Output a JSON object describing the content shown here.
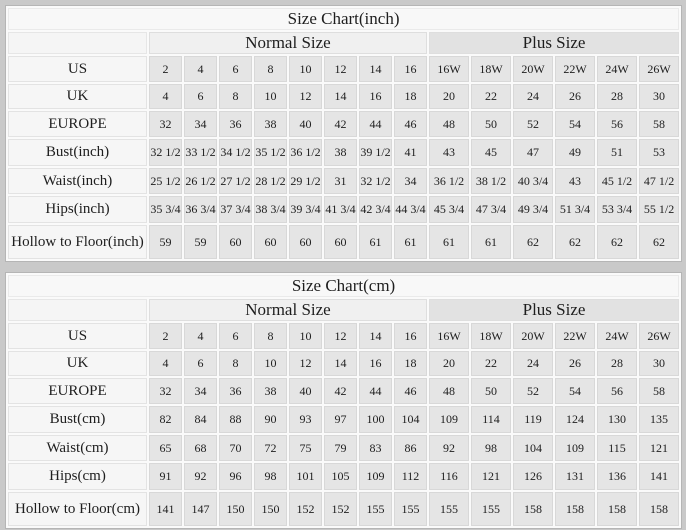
{
  "colors": {
    "page_background": "#c9c9c9",
    "data_cell_background": "#e5e5e5",
    "label_cell_background": "#f6f6f6",
    "plus_header_background": "#e2e2e2",
    "normal_header_background": "#f0f0f0",
    "title_background": "#f8f8f8",
    "text": "#1e1e1e"
  },
  "chart_data": [
    {
      "type": "table",
      "title": "Size Chart(inch)",
      "groups": [
        "Normal Size",
        "Plus Size"
      ],
      "group_spans": [
        8,
        6
      ],
      "rows": [
        {
          "label": "US",
          "values": [
            "2",
            "4",
            "6",
            "8",
            "10",
            "12",
            "14",
            "16",
            "16W",
            "18W",
            "20W",
            "22W",
            "24W",
            "26W"
          ]
        },
        {
          "label": "UK",
          "values": [
            "4",
            "6",
            "8",
            "10",
            "12",
            "14",
            "16",
            "18",
            "20",
            "22",
            "24",
            "26",
            "28",
            "30"
          ]
        },
        {
          "label": "EUROPE",
          "values": [
            "32",
            "34",
            "36",
            "38",
            "40",
            "42",
            "44",
            "46",
            "48",
            "50",
            "52",
            "54",
            "56",
            "58"
          ]
        },
        {
          "label": "Bust(inch)",
          "values": [
            "32 1/2",
            "33 1/2",
            "34 1/2",
            "35 1/2",
            "36 1/2",
            "38",
            "39 1/2",
            "41",
            "43",
            "45",
            "47",
            "49",
            "51",
            "53"
          ]
        },
        {
          "label": "Waist(inch)",
          "values": [
            "25 1/2",
            "26 1/2",
            "27 1/2",
            "28 1/2",
            "29 1/2",
            "31",
            "32 1/2",
            "34",
            "36 1/2",
            "38 1/2",
            "40 3/4",
            "43",
            "45 1/2",
            "47 1/2"
          ]
        },
        {
          "label": "Hips(inch)",
          "values": [
            "35 3/4",
            "36 3/4",
            "37 3/4",
            "38 3/4",
            "39 3/4",
            "41 3/4",
            "42 3/4",
            "44 3/4",
            "45 3/4",
            "47 3/4",
            "49 3/4",
            "51 3/4",
            "53 3/4",
            "55 1/2"
          ]
        },
        {
          "label": "Hollow to Floor(inch)",
          "values": [
            "59",
            "59",
            "60",
            "60",
            "60",
            "60",
            "61",
            "61",
            "61",
            "61",
            "62",
            "62",
            "62",
            "62"
          ]
        }
      ]
    },
    {
      "type": "table",
      "title": "Size Chart(cm)",
      "groups": [
        "Normal Size",
        "Plus Size"
      ],
      "group_spans": [
        8,
        6
      ],
      "rows": [
        {
          "label": "US",
          "values": [
            "2",
            "4",
            "6",
            "8",
            "10",
            "12",
            "14",
            "16",
            "16W",
            "18W",
            "20W",
            "22W",
            "24W",
            "26W"
          ]
        },
        {
          "label": "UK",
          "values": [
            "4",
            "6",
            "8",
            "10",
            "12",
            "14",
            "16",
            "18",
            "20",
            "22",
            "24",
            "26",
            "28",
            "30"
          ]
        },
        {
          "label": "EUROPE",
          "values": [
            "32",
            "34",
            "36",
            "38",
            "40",
            "42",
            "44",
            "46",
            "48",
            "50",
            "52",
            "54",
            "56",
            "58"
          ]
        },
        {
          "label": "Bust(cm)",
          "values": [
            "82",
            "84",
            "88",
            "90",
            "93",
            "97",
            "100",
            "104",
            "109",
            "114",
            "119",
            "124",
            "130",
            "135"
          ]
        },
        {
          "label": "Waist(cm)",
          "values": [
            "65",
            "68",
            "70",
            "72",
            "75",
            "79",
            "83",
            "86",
            "92",
            "98",
            "104",
            "109",
            "115",
            "121"
          ]
        },
        {
          "label": "Hips(cm)",
          "values": [
            "91",
            "92",
            "96",
            "98",
            "101",
            "105",
            "109",
            "112",
            "116",
            "121",
            "126",
            "131",
            "136",
            "141"
          ]
        },
        {
          "label": "Hollow to Floor(cm)",
          "values": [
            "141",
            "147",
            "150",
            "150",
            "152",
            "152",
            "155",
            "155",
            "155",
            "155",
            "158",
            "158",
            "158",
            "158"
          ]
        }
      ]
    }
  ]
}
